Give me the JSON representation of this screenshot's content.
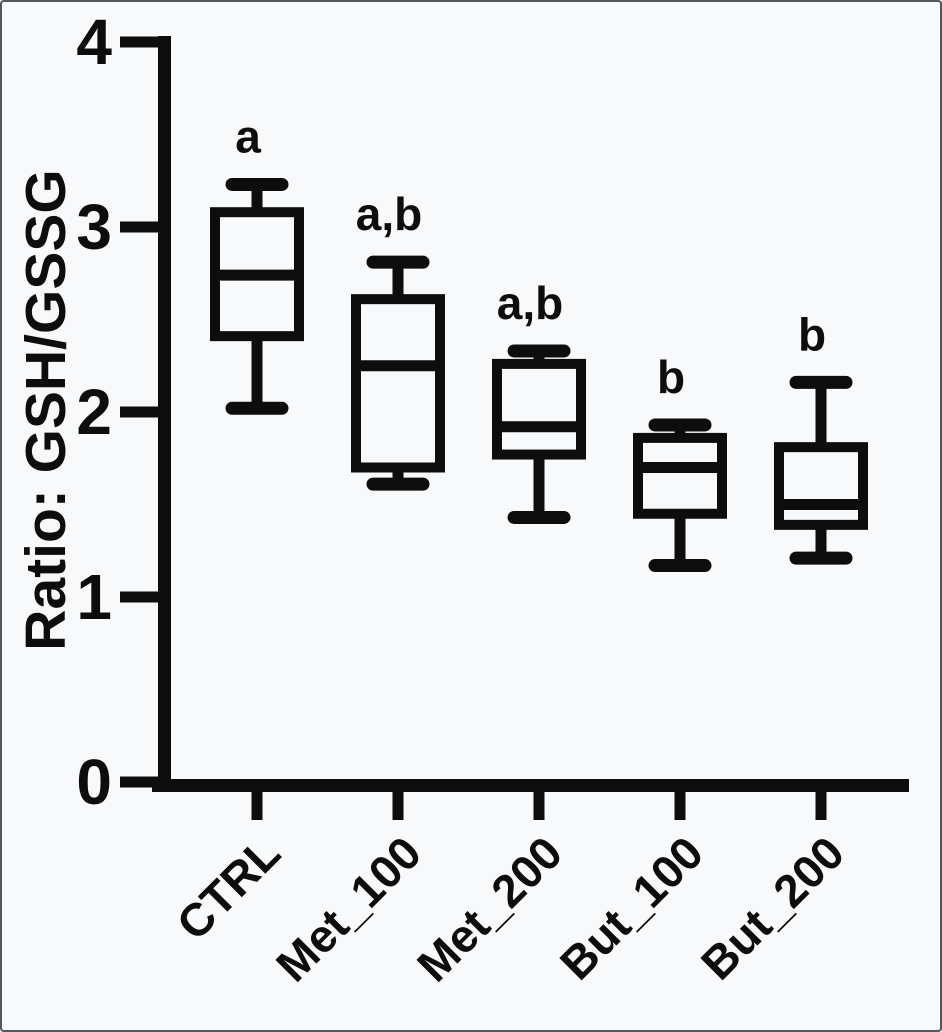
{
  "figure": {
    "background": "#f8f9fb",
    "ink_color": "#0d0d0d",
    "title": ""
  },
  "chart_data": {
    "type": "boxplot",
    "title": "",
    "xlabel": "",
    "ylabel": "Ratio: GSH/GSSG",
    "ylim": [
      0,
      4
    ],
    "yticks": [
      0,
      1,
      2,
      3,
      4
    ],
    "grid": false,
    "legend": "none",
    "categories": [
      "CTRL",
      "Met_100",
      "Met_200",
      "But_100",
      "But_200"
    ],
    "boxes": [
      {
        "category": "CTRL",
        "min": 2.02,
        "q1": 2.41,
        "median": 2.74,
        "q3": 3.08,
        "max": 3.23,
        "significance": "a"
      },
      {
        "category": "Met_100",
        "min": 1.61,
        "q1": 1.7,
        "median": 2.25,
        "q3": 2.61,
        "max": 2.81,
        "significance": "a,b"
      },
      {
        "category": "Met_200",
        "min": 1.43,
        "q1": 1.77,
        "median": 1.92,
        "q3": 2.26,
        "max": 2.33,
        "significance": "a,b"
      },
      {
        "category": "But_100",
        "min": 1.17,
        "q1": 1.45,
        "median": 1.7,
        "q3": 1.86,
        "max": 1.93,
        "significance": "b"
      },
      {
        "category": "But_200",
        "min": 1.21,
        "q1": 1.39,
        "median": 1.5,
        "q3": 1.81,
        "max": 2.16,
        "significance": "b"
      }
    ]
  }
}
